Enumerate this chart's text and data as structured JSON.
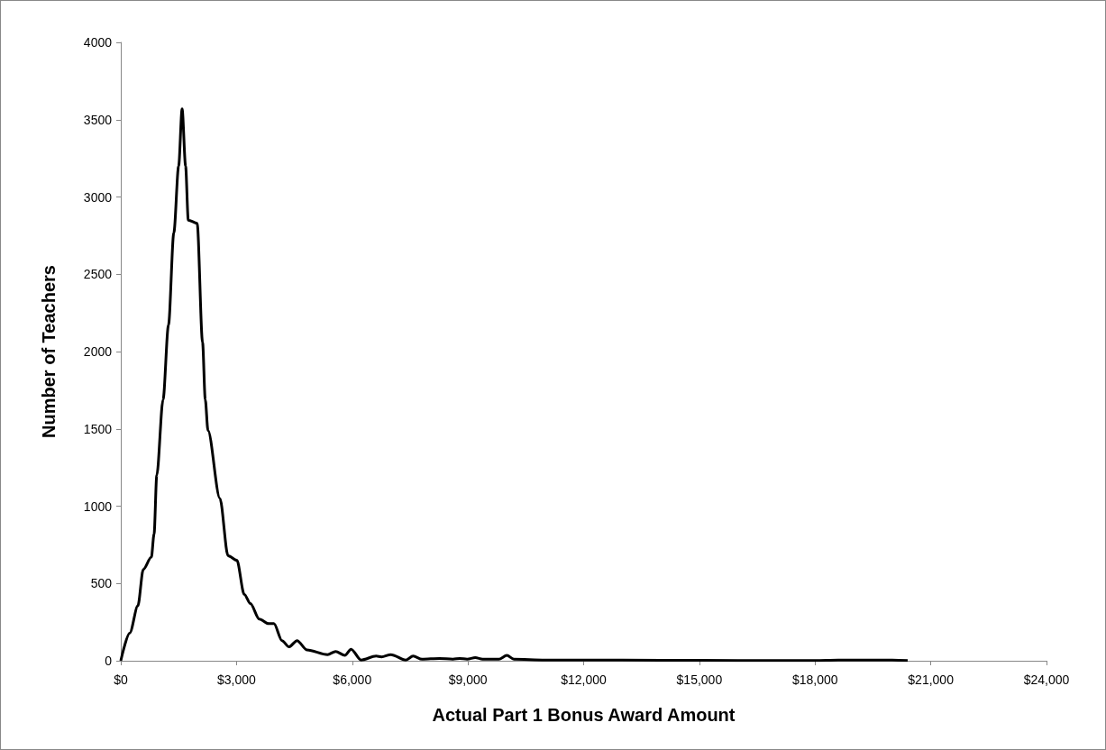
{
  "chart_data": {
    "type": "line",
    "xlabel": "Actual Part 1 Bonus Award Amount",
    "ylabel": "Number of Teachers",
    "x": [
      0,
      233,
      443,
      583,
      793,
      863,
      933,
      1096,
      1236,
      1376,
      1500,
      1590,
      1680,
      1750,
      1980,
      2120,
      2190,
      2260,
      2570,
      2780,
      3010,
      3200,
      3360,
      3590,
      3830,
      3970,
      4180,
      4360,
      4570,
      4830,
      5360,
      5570,
      5810,
      5970,
      6230,
      6620,
      6760,
      7000,
      7390,
      7580,
      7810,
      8260,
      8610,
      8790,
      8980,
      9190,
      9380,
      9800,
      10010,
      10190,
      11000,
      12000,
      14000,
      16000,
      18000,
      18600,
      19500,
      20000,
      20400
    ],
    "series": [
      {
        "color": "#000000",
        "values": [
          0,
          180,
          355,
          590,
          670,
          820,
          1200,
          1690,
          2170,
          2770,
          3200,
          3570,
          3200,
          2850,
          2830,
          2060,
          1690,
          1490,
          1050,
          680,
          650,
          430,
          370,
          270,
          240,
          240,
          130,
          90,
          130,
          70,
          40,
          60,
          35,
          75,
          5,
          30,
          25,
          40,
          5,
          30,
          10,
          15,
          10,
          15,
          10,
          20,
          10,
          10,
          35,
          10,
          5,
          5,
          3,
          2,
          2,
          5,
          5,
          5,
          2
        ]
      }
    ],
    "xlim": [
      0,
      24000
    ],
    "xticks": [
      {
        "value": 0,
        "label": "$0"
      },
      {
        "value": 3000,
        "label": "$3,000"
      },
      {
        "value": 6000,
        "label": "$6,000"
      },
      {
        "value": 9000,
        "label": "$9,000"
      },
      {
        "value": 12000,
        "label": "$12,000"
      },
      {
        "value": 15000,
        "label": "$15,000"
      },
      {
        "value": 18000,
        "label": "$18,000"
      },
      {
        "value": 21000,
        "label": "$21,000"
      },
      {
        "value": 24000,
        "label": "$24,000"
      }
    ],
    "ylim": [
      0,
      4000
    ],
    "yticks": [
      0,
      500,
      1000,
      1500,
      2000,
      2500,
      3000,
      3500,
      4000
    ],
    "grid": false,
    "marker": "none",
    "line_style": "solid"
  }
}
